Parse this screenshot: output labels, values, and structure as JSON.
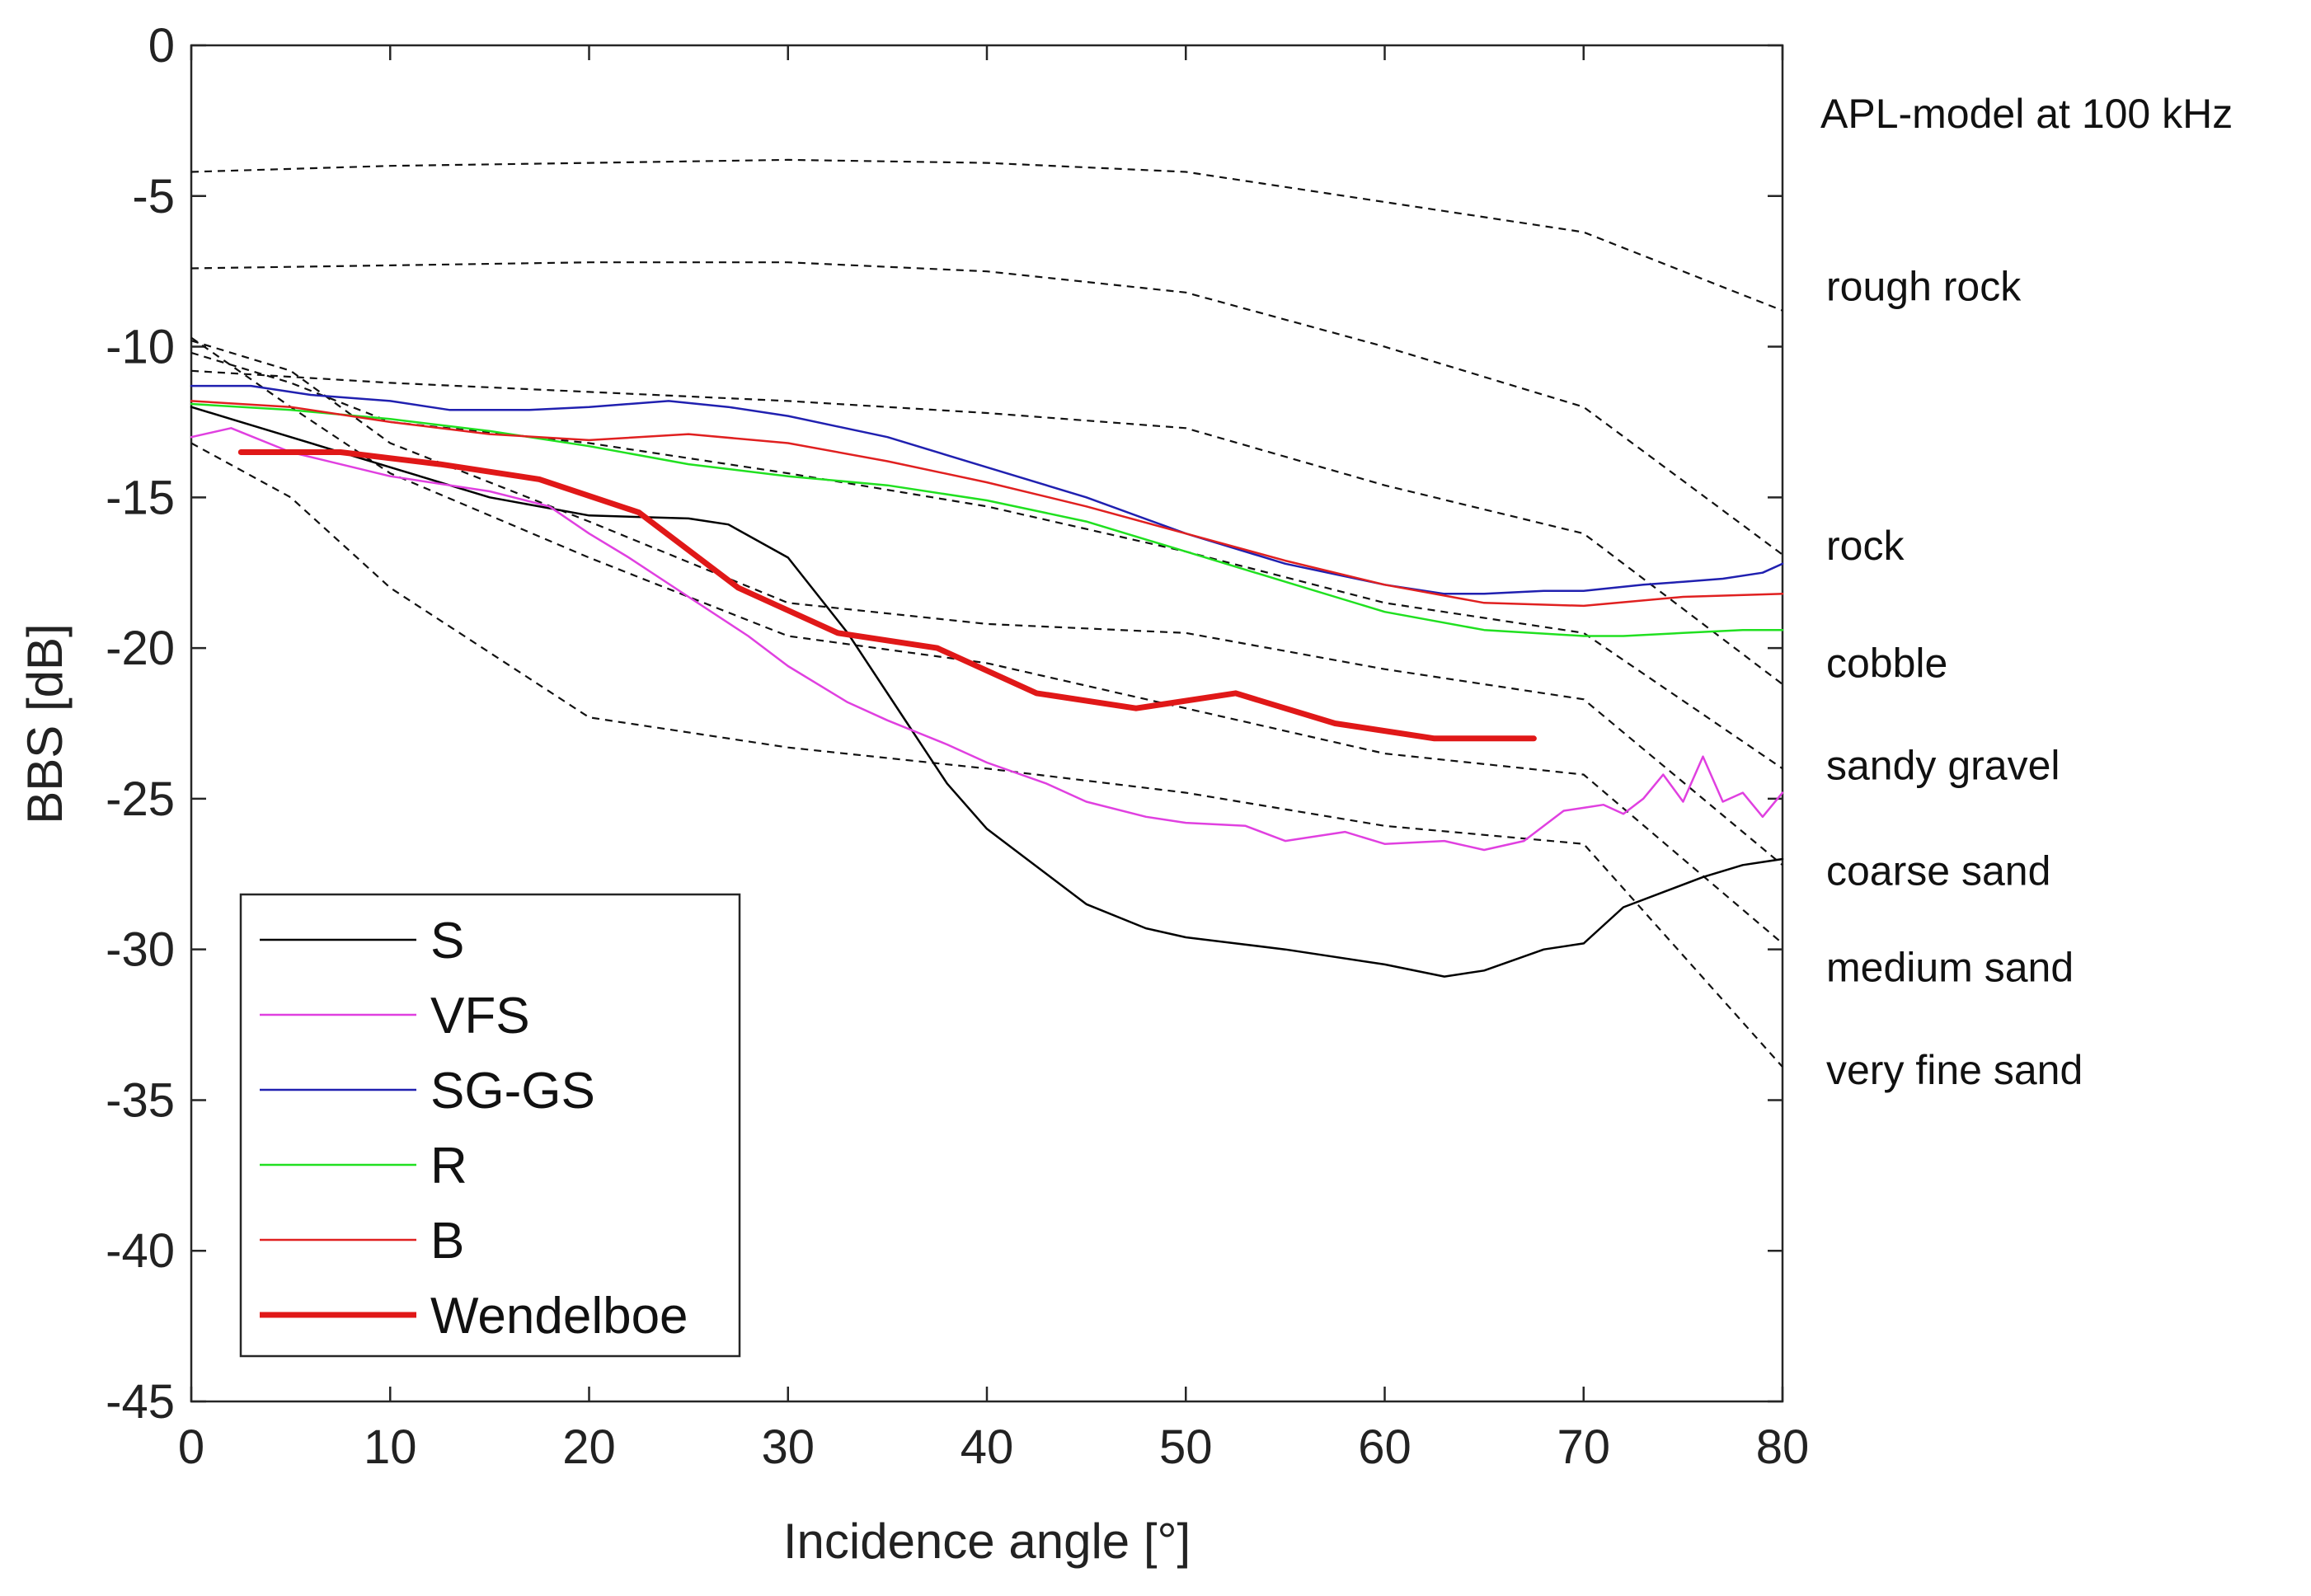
{
  "chart_data": {
    "type": "line",
    "title": "",
    "xlabel": "Incidence angle [°]",
    "ylabel": "BBS [dB]",
    "xlim": [
      0,
      80
    ],
    "ylim": [
      -45,
      0
    ],
    "xticks": [
      "0",
      "10",
      "20",
      "30",
      "40",
      "50",
      "60",
      "70",
      "80"
    ],
    "yticks": [
      "0",
      "-5",
      "-10",
      "-15",
      "-20",
      "-25",
      "-30",
      "-35",
      "-40",
      "-45"
    ],
    "grid": false,
    "legend_position": "bottom-left",
    "model_title": "APL-model at 100 kHz",
    "model_curves": [
      {
        "name": "rough rock",
        "label_y": -8,
        "x": [
          0,
          10,
          20,
          30,
          40,
          50,
          60,
          70,
          80
        ],
        "y": [
          -4.2,
          -4.0,
          -3.9,
          -3.8,
          -3.9,
          -4.2,
          -5.2,
          -6.2,
          -8.8
        ]
      },
      {
        "name": "rock",
        "label_y": -16.6,
        "x": [
          0,
          10,
          20,
          30,
          40,
          50,
          60,
          70,
          80
        ],
        "y": [
          -7.4,
          -7.3,
          -7.2,
          -7.2,
          -7.5,
          -8.2,
          -10.0,
          -12.0,
          -16.9
        ]
      },
      {
        "name": "cobble",
        "label_y": -20.5,
        "x": [
          0,
          10,
          20,
          30,
          40,
          50,
          60,
          70,
          80
        ],
        "y": [
          -10.8,
          -11.2,
          -11.5,
          -11.8,
          -12.2,
          -12.7,
          -14.6,
          -16.2,
          -21.2
        ]
      },
      {
        "name": "sandy gravel",
        "label_y": -23.9,
        "x": [
          0,
          5,
          10,
          20,
          30,
          40,
          50,
          60,
          70,
          80
        ],
        "y": [
          -10.2,
          -11.2,
          -12.5,
          -13.2,
          -14.2,
          -15.3,
          -16.8,
          -18.5,
          -19.5,
          -24.0
        ]
      },
      {
        "name": "coarse sand",
        "label_y": -27.4,
        "x": [
          0,
          5,
          10,
          20,
          30,
          40,
          50,
          60,
          70,
          80
        ],
        "y": [
          -9.8,
          -10.8,
          -13.2,
          -15.8,
          -18.5,
          -19.2,
          -19.5,
          -20.7,
          -21.7,
          -27.2
        ]
      },
      {
        "name": "medium sand",
        "label_y": -30.6,
        "x": [
          0,
          5,
          10,
          20,
          30,
          40,
          50,
          60,
          70,
          80
        ],
        "y": [
          -9.7,
          -12.0,
          -14.2,
          -17.0,
          -19.6,
          -20.5,
          -22.0,
          -23.5,
          -24.2,
          -29.8
        ]
      },
      {
        "name": "very fine sand",
        "label_y": -34,
        "x": [
          0,
          5,
          10,
          20,
          30,
          40,
          50,
          60,
          70,
          80
        ],
        "y": [
          -13.2,
          -15.0,
          -18.0,
          -22.3,
          -23.3,
          -24.0,
          -24.8,
          -25.9,
          -26.5,
          -33.9
        ]
      }
    ],
    "series": [
      {
        "name": "S",
        "color": "#000000",
        "width": 2.5,
        "x": [
          0,
          5,
          10,
          15,
          20,
          25,
          27,
          30,
          33,
          36,
          38,
          40,
          42,
          45,
          48,
          50,
          55,
          60,
          63,
          65,
          68,
          70,
          72,
          74,
          76,
          78,
          80
        ],
        "y": [
          -12.0,
          -13.0,
          -14.0,
          -15.0,
          -15.6,
          -15.7,
          -15.9,
          -17.0,
          -19.5,
          -22.5,
          -24.5,
          -26.0,
          -27.0,
          -28.5,
          -29.3,
          -29.6,
          -30.0,
          -30.5,
          -30.9,
          -30.7,
          -30.0,
          -29.8,
          -28.6,
          -28.1,
          -27.6,
          -27.2,
          -27.0
        ]
      },
      {
        "name": "VFS",
        "color": "#e040e0",
        "width": 2.5,
        "x": [
          0,
          2,
          5,
          10,
          15,
          18,
          20,
          22,
          25,
          28,
          30,
          33,
          35,
          38,
          40,
          43,
          45,
          48,
          50,
          53,
          55,
          58,
          60,
          63,
          65,
          67,
          69,
          70,
          71,
          72,
          73,
          74,
          75,
          76,
          77,
          78,
          79,
          80
        ],
        "y": [
          -13.0,
          -12.7,
          -13.5,
          -14.3,
          -14.8,
          -15.3,
          -16.2,
          -17.0,
          -18.3,
          -19.6,
          -20.6,
          -21.8,
          -22.4,
          -23.2,
          -23.8,
          -24.5,
          -25.1,
          -25.6,
          -25.8,
          -25.9,
          -26.4,
          -26.1,
          -26.5,
          -26.4,
          -26.7,
          -26.4,
          -25.4,
          -25.3,
          -25.2,
          -25.5,
          -25.0,
          -24.2,
          -25.1,
          -23.6,
          -25.1,
          -24.8,
          -25.6,
          -24.8
        ]
      },
      {
        "name": "SG-GS",
        "color": "#2020b0",
        "width": 2.5,
        "x": [
          0,
          3,
          6,
          10,
          13,
          17,
          20,
          24,
          27,
          30,
          35,
          40,
          45,
          50,
          55,
          60,
          63,
          65,
          68,
          70,
          73,
          75,
          77,
          79,
          80
        ],
        "y": [
          -11.3,
          -11.3,
          -11.6,
          -11.8,
          -12.1,
          -12.1,
          -12.0,
          -11.8,
          -12.0,
          -12.3,
          -13.0,
          -14.0,
          -15.0,
          -16.2,
          -17.2,
          -17.9,
          -18.2,
          -18.2,
          -18.1,
          -18.1,
          -17.9,
          -17.8,
          -17.7,
          -17.5,
          -17.2
        ]
      },
      {
        "name": "R",
        "color": "#20e020",
        "width": 2.5,
        "x": [
          0,
          5,
          10,
          15,
          20,
          25,
          30,
          35,
          40,
          45,
          50,
          55,
          60,
          65,
          70,
          72,
          75,
          78,
          80
        ],
        "y": [
          -11.9,
          -12.1,
          -12.4,
          -12.8,
          -13.3,
          -13.9,
          -14.3,
          -14.6,
          -15.1,
          -15.8,
          -16.8,
          -17.8,
          -18.8,
          -19.4,
          -19.6,
          -19.6,
          -19.5,
          -19.4,
          -19.4
        ]
      },
      {
        "name": "B",
        "color": "#e02020",
        "width": 2.5,
        "x": [
          0,
          5,
          10,
          15,
          20,
          25,
          30,
          35,
          40,
          45,
          50,
          55,
          60,
          65,
          70,
          75,
          80
        ],
        "y": [
          -11.8,
          -12.0,
          -12.5,
          -12.9,
          -13.1,
          -12.9,
          -13.2,
          -13.8,
          -14.5,
          -15.3,
          -16.2,
          -17.1,
          -17.9,
          -18.5,
          -18.6,
          -18.3,
          -18.2
        ]
      },
      {
        "name": "Wendelboe",
        "color": "#e01818",
        "width": 7,
        "x": [
          2.5,
          7.5,
          12.5,
          17.5,
          22.5,
          27.5,
          32.5,
          37.5,
          42.5,
          47.5,
          52.5,
          57.5,
          62.5,
          67.5
        ],
        "y": [
          -13.5,
          -13.5,
          -13.9,
          -14.4,
          -15.5,
          -18.0,
          -19.5,
          -20.0,
          -21.5,
          -22.0,
          -21.5,
          -22.5,
          -23.0,
          -23.0
        ]
      }
    ]
  }
}
